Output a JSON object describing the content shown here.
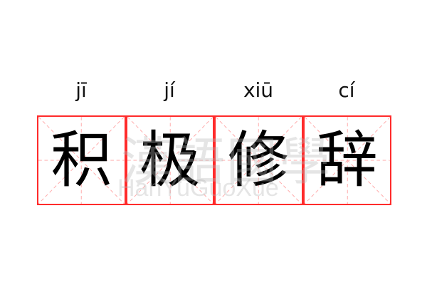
{
  "entries": [
    {
      "pinyin": "jī",
      "hanzi": "积"
    },
    {
      "pinyin": "jí",
      "hanzi": "极"
    },
    {
      "pinyin": "xiū",
      "hanzi": "修"
    },
    {
      "pinyin": "cí",
      "hanzi": "辞"
    }
  ],
  "watermark": {
    "chinese": "漢語國學",
    "latin": "HanYuGuoXue"
  },
  "colors": {
    "border": "#ff2b2b",
    "guide": "#ffaaaa",
    "text": "#000000"
  }
}
